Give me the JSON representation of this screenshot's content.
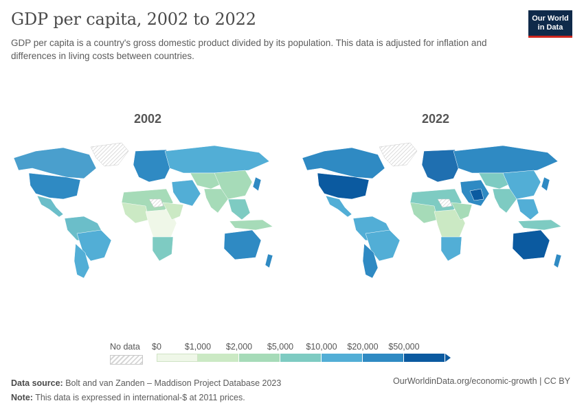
{
  "title": "GDP per capita, 2002 to 2022",
  "subtitle": "GDP per capita is a country's gross domestic product divided by its population. This data is adjusted for inflation and differences in living costs between countries.",
  "logo": {
    "line1": "Our World",
    "line2": "in Data"
  },
  "maps": [
    {
      "year": "2002"
    },
    {
      "year": "2022"
    }
  ],
  "legend": {
    "no_data_label": "No data",
    "ticks": [
      "$0",
      "$1,000",
      "$2,000",
      "$5,000",
      "$10,000",
      "$20,000",
      "$50,000"
    ],
    "colors": [
      "#eff7e8",
      "#cbe9c4",
      "#a6dbb8",
      "#7ecbc2",
      "#52aed6",
      "#2f8ac3",
      "#0b5aa0"
    ]
  },
  "footer": {
    "source_label": "Data source:",
    "source_text": "Bolt and van Zanden – Maddison Project Database 2023",
    "note_label": "Note:",
    "note_text": "This data is expressed in international-$ at 2011 prices.",
    "link_text": "OurWorldinData.org/economic-growth | CC BY"
  }
}
